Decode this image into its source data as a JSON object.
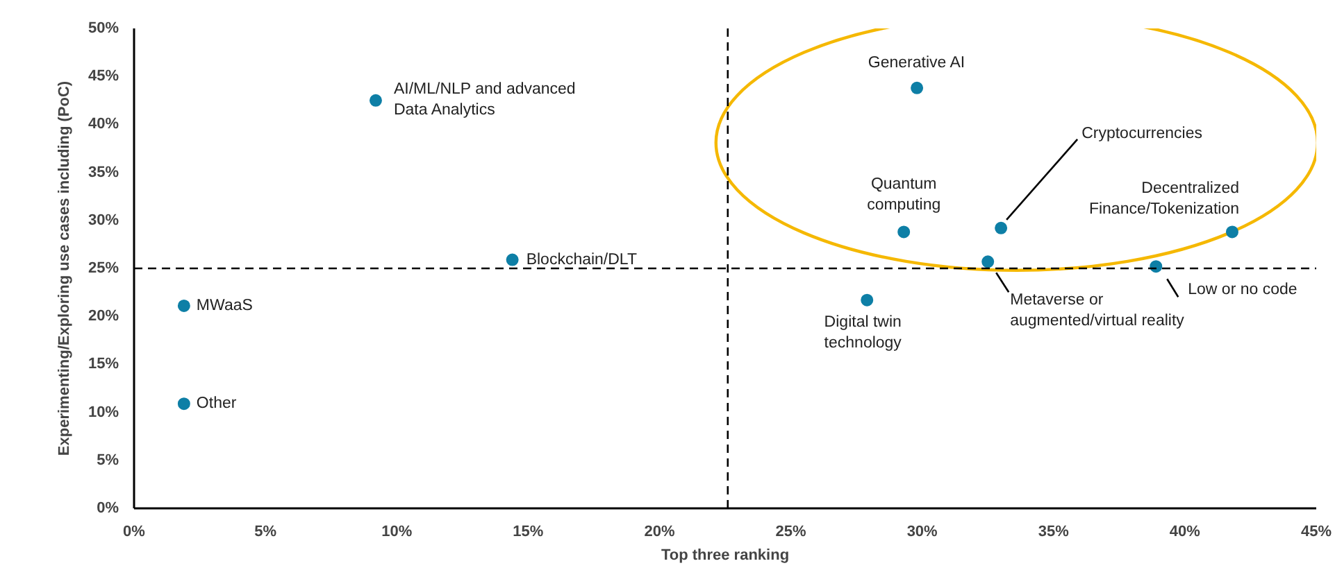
{
  "chart_data": {
    "type": "scatter",
    "xlabel": "Top three ranking",
    "ylabel": "Experimenting/Exploring use cases including (PoC)",
    "series": [
      {
        "color": "#0e7fa6",
        "x": [
          9.2,
          14.4,
          1.9,
          1.9,
          29.8,
          29.3,
          33.0,
          32.5,
          27.9,
          38.9,
          41.8
        ],
        "values": [
          42.5,
          25.9,
          21.1,
          10.9,
          43.8,
          28.8,
          29.2,
          25.7,
          21.7,
          25.2,
          28.8
        ]
      }
    ],
    "annotations": [
      {
        "text": "AI/ML/NLP and advanced\nData Analytics",
        "x": 9.2,
        "y": 42.5
      },
      {
        "text": "Blockchain/DLT",
        "x": 14.4,
        "y": 25.9
      },
      {
        "text": "MWaaS",
        "x": 1.9,
        "y": 21.1
      },
      {
        "text": "Other",
        "x": 1.9,
        "y": 10.9
      },
      {
        "text": "Generative AI",
        "x": 29.8,
        "y": 43.8
      },
      {
        "text": "Quantum\ncomputing",
        "x": 29.3,
        "y": 28.8
      },
      {
        "text": "Cryptocurrencies",
        "x": 33.0,
        "y": 29.2
      },
      {
        "text": "Metaverse or\naugmented/virtual reality",
        "x": 32.5,
        "y": 25.7
      },
      {
        "text": "Digital twin\ntechnology",
        "x": 27.9,
        "y": 21.7
      },
      {
        "text": "Low or no code",
        "x": 38.9,
        "y": 25.2
      },
      {
        "text": "Decentralized\nFinance/Tokenization",
        "x": 41.8,
        "y": 28.8
      }
    ],
    "ref_lines": [
      {
        "axis": "x",
        "value": 22.6,
        "color": "#000000",
        "line_style": "dashed"
      },
      {
        "axis": "y",
        "value": 25,
        "color": "#000000",
        "line_style": "dashed"
      }
    ],
    "xlim": [
      0,
      45
    ],
    "xticks": [
      {
        "value": 0,
        "label": "0%"
      },
      {
        "value": 5,
        "label": "5%"
      },
      {
        "value": 10,
        "label": "10%"
      },
      {
        "value": 15,
        "label": "15%"
      },
      {
        "value": 20,
        "label": "20%"
      },
      {
        "value": 25,
        "label": "25%"
      },
      {
        "value": 30,
        "label": "30%"
      },
      {
        "value": 35,
        "label": "35%"
      },
      {
        "value": 40,
        "label": "40%"
      },
      {
        "value": 45,
        "label": "45%"
      }
    ],
    "ylim": [
      0,
      50
    ],
    "yticks": [
      {
        "value": 0,
        "label": "0%"
      },
      {
        "value": 5,
        "label": "5%"
      },
      {
        "value": 10,
        "label": "10%"
      },
      {
        "value": 15,
        "label": "15%"
      },
      {
        "value": 20,
        "label": "20%"
      },
      {
        "value": 25,
        "label": "25%"
      },
      {
        "value": 30,
        "label": "30%"
      },
      {
        "value": 35,
        "label": "35%"
      },
      {
        "value": 40,
        "label": "40%"
      },
      {
        "value": 45,
        "label": "45%"
      },
      {
        "value": 50,
        "label": "50%"
      }
    ],
    "grid": false,
    "marker": "circle"
  }
}
